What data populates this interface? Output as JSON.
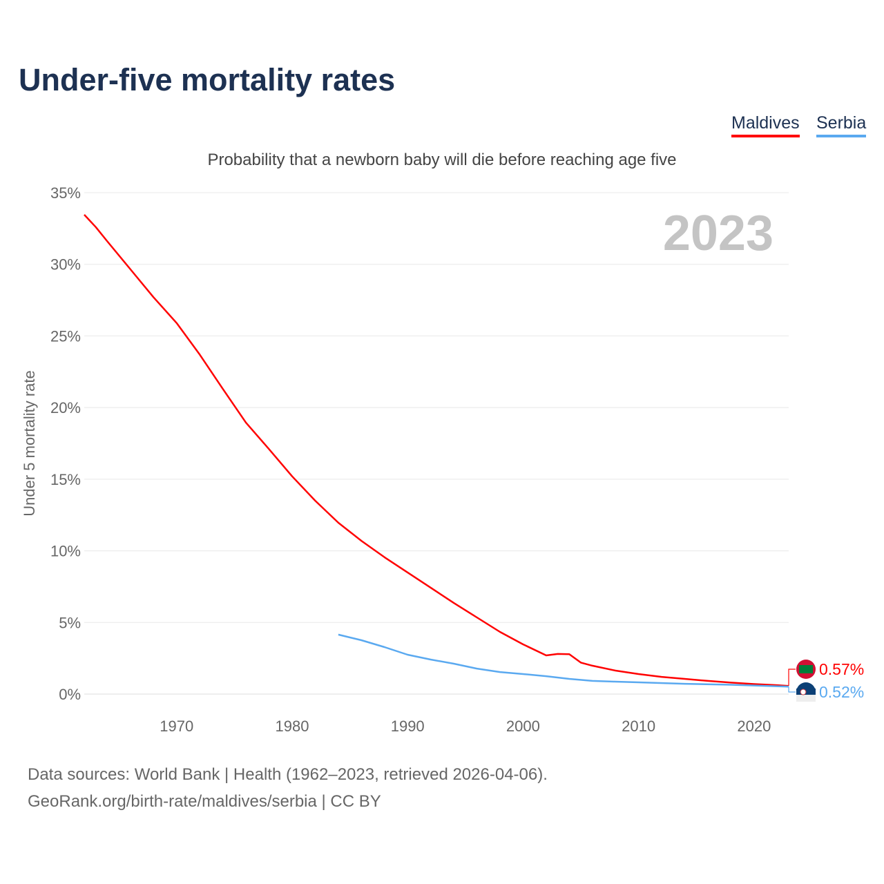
{
  "title": "Under-five mortality rates",
  "legend": {
    "maldives": "Maldives",
    "serbia": "Serbia"
  },
  "source_line1": "Data sources: World Bank | Health (1962–2023, retrieved 2026-04-06).",
  "source_line2": "GeoRank.org/birth-rate/maldives/serbia | CC BY",
  "chart_data": {
    "type": "line",
    "title": "Probability that a newborn baby will die before reaching age five",
    "ylabel": "Under 5 mortality rate",
    "xlabel": "",
    "year_label": "2023",
    "xlim": [
      1962,
      2023
    ],
    "ylim": [
      0,
      35
    ],
    "x_ticks": [
      1970,
      1980,
      1990,
      2000,
      2010,
      2020
    ],
    "y_ticks": [
      0,
      5,
      10,
      15,
      20,
      25,
      30,
      35
    ],
    "y_tick_labels": [
      "0%",
      "5%",
      "10%",
      "15%",
      "20%",
      "25%",
      "30%",
      "35%"
    ],
    "grid": true,
    "legend_position": "top-right",
    "series": [
      {
        "name": "Maldives",
        "color": "#ff0000",
        "end_label": "0.57%",
        "x": [
          1962,
          1963,
          1964,
          1966,
          1968,
          1970,
          1972,
          1974,
          1976,
          1978,
          1980,
          1982,
          1984,
          1985,
          1986,
          1988,
          1990,
          1992,
          1994,
          1996,
          1998,
          2000,
          2002,
          2003,
          2004,
          2005,
          2006,
          2008,
          2010,
          2012,
          2014,
          2016,
          2018,
          2020,
          2022,
          2023
        ],
        "y": [
          33.46,
          32.6,
          31.6,
          29.65,
          27.7,
          25.9,
          23.7,
          21.3,
          18.95,
          17.1,
          15.2,
          13.5,
          11.96,
          11.33,
          10.7,
          9.55,
          8.49,
          7.43,
          6.36,
          5.35,
          4.34,
          3.47,
          2.7,
          2.8,
          2.78,
          2.2,
          1.98,
          1.64,
          1.4,
          1.2,
          1.06,
          0.92,
          0.8,
          0.7,
          0.62,
          0.57
        ]
      },
      {
        "name": "Serbia",
        "color": "#5aa9f0",
        "end_label": "0.52%",
        "x": [
          1984,
          1986,
          1988,
          1990,
          1992,
          1994,
          1996,
          1998,
          2000,
          2002,
          2004,
          2006,
          2008,
          2010,
          2014,
          2018,
          2023
        ],
        "y": [
          4.15,
          3.76,
          3.28,
          2.75,
          2.41,
          2.12,
          1.78,
          1.54,
          1.4,
          1.25,
          1.06,
          0.92,
          0.87,
          0.82,
          0.72,
          0.65,
          0.52
        ]
      }
    ]
  }
}
